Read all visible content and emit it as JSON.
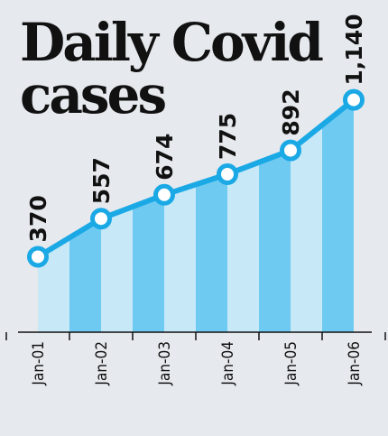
{
  "title_line1": "Daily Covid",
  "title_line2": "cases",
  "colors": {
    "background": "#e6e9ed",
    "line": "#1ba9e6",
    "bar_dark": "#6fcaf2",
    "bar_light": "#c6e8f7",
    "text": "#111111"
  },
  "chart_data": {
    "type": "line",
    "title": "Daily Covid cases",
    "xlabel": "",
    "ylabel": "",
    "categories": [
      "Jan-01",
      "Jan-02",
      "Jan-03",
      "Jan-04",
      "Jan-05",
      "Jan-06"
    ],
    "values": [
      370,
      557,
      674,
      775,
      892,
      1140
    ],
    "value_labels": [
      "370",
      "557",
      "674",
      "775",
      "892",
      "1,140"
    ],
    "ylim": [
      0,
      1300
    ],
    "grid": false,
    "legend": "none"
  }
}
